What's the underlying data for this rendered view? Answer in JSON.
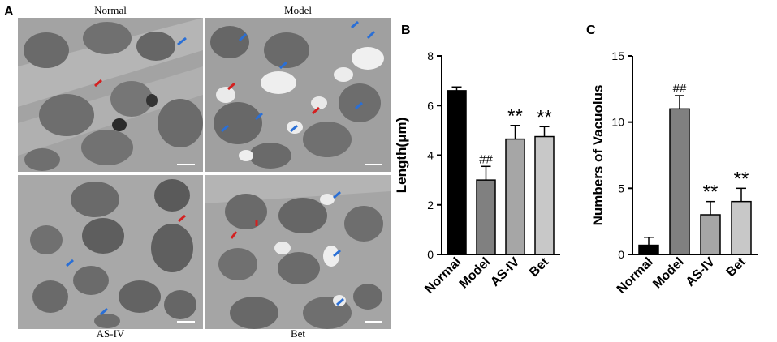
{
  "panel_a": {
    "letter": "A",
    "labels": [
      "Normal",
      "Model",
      "AS-IV",
      "Bet"
    ]
  },
  "chart_data": [
    {
      "panel": "B",
      "type": "bar",
      "categories": [
        "Normal",
        "Model",
        "AS-IV",
        "Bet"
      ],
      "values": [
        6.6,
        3.0,
        4.65,
        4.75
      ],
      "errors": [
        0.15,
        0.55,
        0.55,
        0.4
      ],
      "colors": [
        "#000000",
        "#808080",
        "#a6a6a6",
        "#c8c8c8"
      ],
      "annotations": [
        "",
        "##",
        "**",
        "**"
      ],
      "ylabel": "Length(μm)",
      "ylim": [
        0,
        8
      ],
      "yticks": [
        0,
        2,
        4,
        6,
        8
      ]
    },
    {
      "panel": "C",
      "type": "bar",
      "categories": [
        "Normal",
        "Model",
        "AS-IV",
        "Bet"
      ],
      "values": [
        0.7,
        11.0,
        3.0,
        4.0
      ],
      "errors": [
        0.6,
        1.0,
        1.0,
        1.0
      ],
      "colors": [
        "#000000",
        "#808080",
        "#a6a6a6",
        "#c8c8c8"
      ],
      "annotations": [
        "",
        "##",
        "**",
        "**"
      ],
      "ylabel": "Numbers of Vacuolus",
      "ylim": [
        0,
        15
      ],
      "yticks": [
        0,
        5,
        10,
        15
      ]
    }
  ]
}
